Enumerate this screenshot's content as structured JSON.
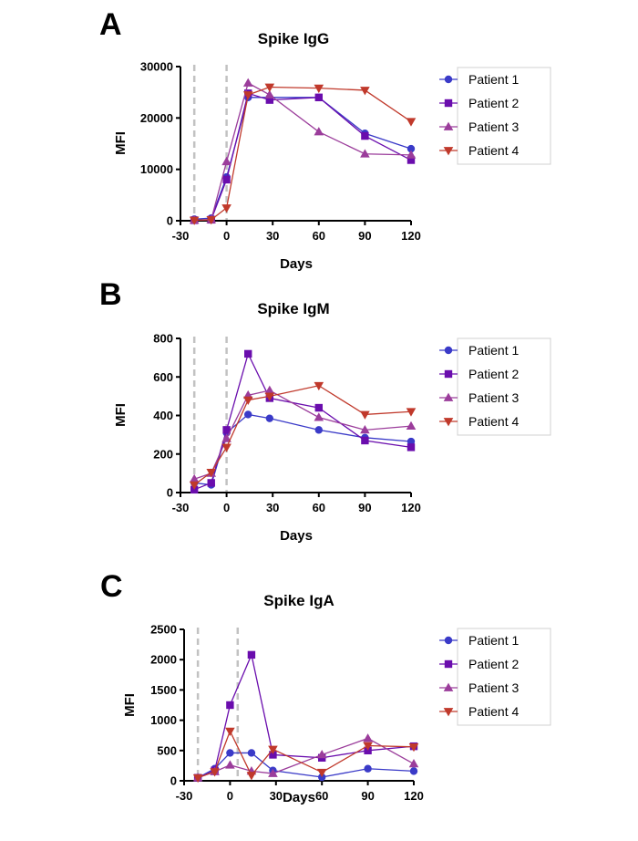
{
  "chart_data": [
    {
      "panel": "A",
      "type": "line",
      "title": "Spike IgG",
      "xlabel": "Days",
      "ylabel": "MFI",
      "xlim": [
        -30,
        120
      ],
      "ylim": [
        0,
        30000
      ],
      "xticks": [
        -30,
        0,
        30,
        60,
        90,
        120
      ],
      "yticks": [
        0,
        10000,
        20000,
        30000
      ],
      "reference_lines_x": [
        -21,
        0
      ],
      "legend_position": "right",
      "series": [
        {
          "name": "Patient 1",
          "color": "#3a3ac8",
          "marker": "circle",
          "x": [
            -21,
            -10,
            0,
            14,
            28,
            60,
            90,
            120
          ],
          "values": [
            300,
            500,
            8500,
            24000,
            24000,
            24000,
            17000,
            14000
          ]
        },
        {
          "name": "Patient 2",
          "color": "#6a0dad",
          "marker": "square",
          "x": [
            -21,
            -10,
            0,
            14,
            28,
            60,
            90,
            120
          ],
          "values": [
            100,
            200,
            8000,
            24800,
            23500,
            24000,
            16500,
            11800
          ]
        },
        {
          "name": "Patient 3",
          "color": "#9b3d9b",
          "marker": "triangle-up",
          "x": [
            -21,
            -10,
            0,
            14,
            28,
            60,
            90,
            120
          ],
          "values": [
            100,
            200,
            11500,
            26800,
            24500,
            17300,
            13000,
            12800
          ]
        },
        {
          "name": "Patient 4",
          "color": "#c0392b",
          "marker": "triangle-down",
          "x": [
            -21,
            -10,
            0,
            14,
            28,
            60,
            90,
            120
          ],
          "values": [
            100,
            200,
            2500,
            24500,
            26000,
            25800,
            25400,
            19300
          ]
        }
      ]
    },
    {
      "panel": "B",
      "type": "line",
      "title": "Spike IgM",
      "xlabel": "Days",
      "ylabel": "MFI",
      "xlim": [
        -30,
        120
      ],
      "ylim": [
        0,
        800
      ],
      "xticks": [
        -30,
        0,
        30,
        60,
        90,
        120
      ],
      "yticks": [
        0,
        200,
        400,
        600,
        800
      ],
      "reference_lines_x": [
        -21,
        0
      ],
      "legend_position": "right",
      "series": [
        {
          "name": "Patient 1",
          "color": "#3a3ac8",
          "marker": "circle",
          "x": [
            -21,
            -10,
            0,
            14,
            28,
            60,
            90,
            120
          ],
          "values": [
            50,
            40,
            310,
            405,
            385,
            325,
            285,
            265
          ]
        },
        {
          "name": "Patient 2",
          "color": "#6a0dad",
          "marker": "square",
          "x": [
            -21,
            -10,
            0,
            14,
            28,
            60,
            90,
            120
          ],
          "values": [
            15,
            50,
            325,
            720,
            490,
            440,
            270,
            235
          ]
        },
        {
          "name": "Patient 3",
          "color": "#9b3d9b",
          "marker": "triangle-up",
          "x": [
            -21,
            -10,
            0,
            14,
            28,
            60,
            90,
            120
          ],
          "values": [
            70,
            100,
            280,
            505,
            530,
            390,
            325,
            345
          ]
        },
        {
          "name": "Patient 4",
          "color": "#c0392b",
          "marker": "triangle-down",
          "x": [
            -21,
            -10,
            0,
            14,
            28,
            60,
            90,
            120
          ],
          "values": [
            40,
            105,
            235,
            480,
            500,
            555,
            405,
            420
          ]
        }
      ]
    },
    {
      "panel": "C",
      "type": "line",
      "title": "Spike IgA",
      "xlabel": "Days",
      "ylabel": "MFI",
      "xlim": [
        -30,
        120
      ],
      "ylim": [
        0,
        2500
      ],
      "xticks": [
        -30,
        0,
        30,
        60,
        90,
        120
      ],
      "yticks": [
        0,
        500,
        1000,
        1500,
        2000,
        2500
      ],
      "reference_lines_x": [
        -21,
        5
      ],
      "legend_position": "right",
      "series": [
        {
          "name": "Patient 1",
          "color": "#3a3ac8",
          "marker": "circle",
          "x": [
            -21,
            -10,
            0,
            14,
            28,
            60,
            90,
            120
          ],
          "values": [
            50,
            200,
            460,
            460,
            170,
            60,
            200,
            160
          ]
        },
        {
          "name": "Patient 2",
          "color": "#6a0dad",
          "marker": "square",
          "x": [
            -21,
            -10,
            0,
            14,
            28,
            60,
            90,
            120
          ],
          "values": [
            50,
            170,
            1250,
            2080,
            430,
            380,
            500,
            570
          ]
        },
        {
          "name": "Patient 3",
          "color": "#9b3d9b",
          "marker": "triangle-up",
          "x": [
            -21,
            -10,
            0,
            14,
            28,
            60,
            90,
            120
          ],
          "values": [
            50,
            150,
            260,
            160,
            120,
            430,
            700,
            280
          ]
        },
        {
          "name": "Patient 4",
          "color": "#c0392b",
          "marker": "triangle-down",
          "x": [
            -21,
            -10,
            0,
            14,
            28,
            60,
            90,
            120
          ],
          "values": [
            50,
            150,
            820,
            90,
            520,
            140,
            580,
            560
          ]
        }
      ]
    }
  ]
}
